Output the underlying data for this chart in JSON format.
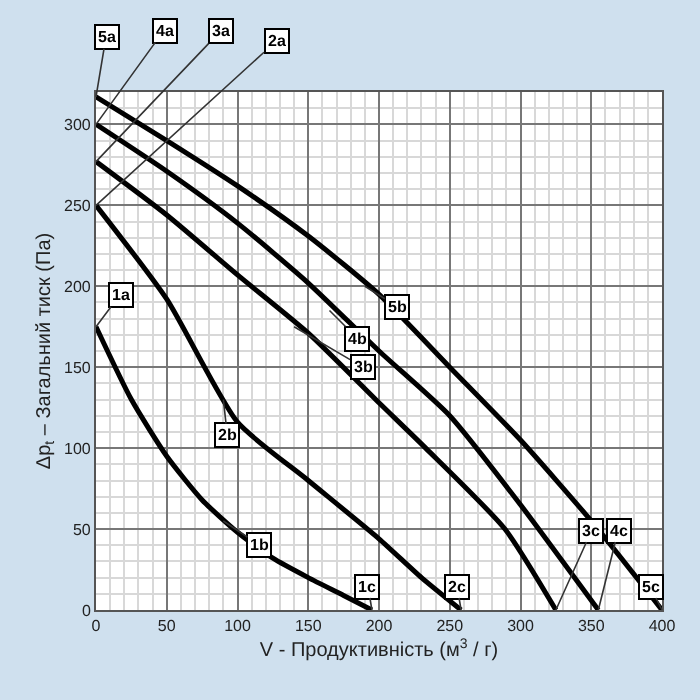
{
  "chart_data": {
    "type": "line",
    "xlabel": "V - Продуктивність (м$^{3}$ / г)",
    "ylabel": "Δp$_{t}$ – Загальний тиск (Па)",
    "xlim": [
      0,
      400
    ],
    "ylim": [
      0,
      320
    ],
    "xticks": [
      0,
      50,
      100,
      150,
      200,
      250,
      300,
      350,
      400
    ],
    "yticks": [
      0,
      50,
      100,
      150,
      200,
      250,
      300
    ],
    "grid": true,
    "marker": "none",
    "line_style": "solid",
    "series": [
      {
        "color": "#000000",
        "x": [
          0,
          25,
          50,
          75,
          100,
          125,
          150,
          175,
          195
        ],
        "values": [
          175,
          130,
          95,
          68,
          48,
          32,
          20,
          9,
          0
        ]
      },
      {
        "color": "#000000",
        "x": [
          0,
          50,
          100,
          150,
          200,
          230,
          258
        ],
        "values": [
          250,
          192,
          116,
          80,
          44,
          20,
          0
        ]
      },
      {
        "color": "#000000",
        "x": [
          0,
          50,
          100,
          150,
          200,
          233,
          289,
          325
        ],
        "values": [
          277,
          244,
          207,
          171,
          128,
          100,
          50,
          0
        ]
      },
      {
        "color": "#000000",
        "x": [
          0,
          50,
          100,
          150,
          200,
          250,
          300,
          355
        ],
        "values": [
          300,
          271,
          239,
          202,
          160,
          120,
          65,
          0
        ]
      },
      {
        "color": "#000000",
        "x": [
          0,
          50,
          100,
          150,
          200,
          250,
          300,
          350,
          400
        ],
        "values": [
          317,
          290,
          262,
          231,
          195,
          150,
          105,
          55,
          0
        ]
      }
    ],
    "annotations": [
      {
        "text": "1a",
        "x": 0,
        "y": 175
      },
      {
        "text": "1b",
        "x": 90,
        "y": 55
      },
      {
        "text": "1c",
        "x": 195,
        "y": 0
      },
      {
        "text": "2a",
        "x": 0,
        "y": 250
      },
      {
        "text": "2b",
        "x": 90,
        "y": 130
      },
      {
        "text": "2c",
        "x": 258,
        "y": 0
      },
      {
        "text": "3a",
        "x": 0,
        "y": 277
      },
      {
        "text": "3b",
        "x": 140,
        "y": 175
      },
      {
        "text": "3c",
        "x": 325,
        "y": 0
      },
      {
        "text": "4a",
        "x": 0,
        "y": 300
      },
      {
        "text": "4b",
        "x": 165,
        "y": 185
      },
      {
        "text": "4c",
        "x": 355,
        "y": 0
      },
      {
        "text": "5a",
        "x": 0,
        "y": 317
      },
      {
        "text": "5b",
        "x": 190,
        "y": 200
      },
      {
        "text": "5c",
        "x": 400,
        "y": 0
      }
    ]
  }
}
